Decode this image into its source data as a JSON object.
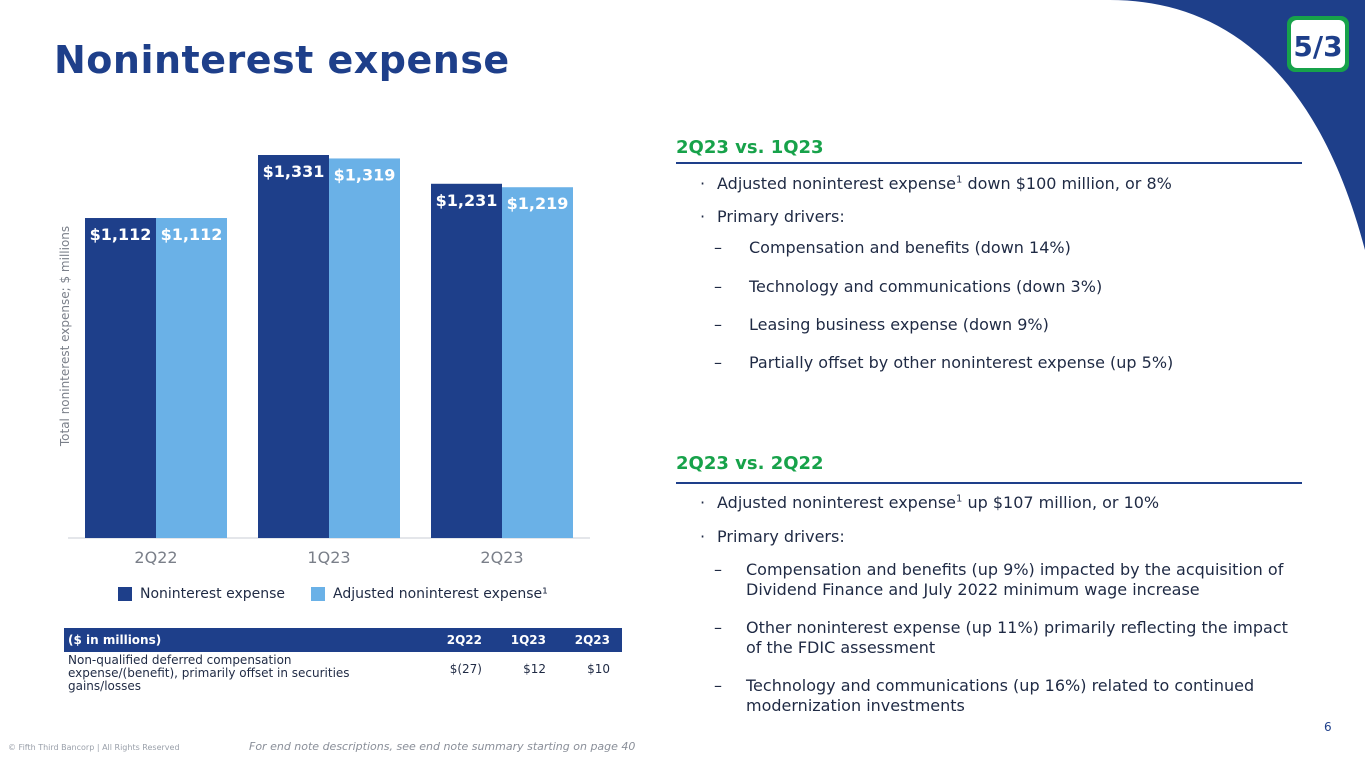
{
  "page": {
    "title": "Noninterest expense",
    "page_number": "6",
    "copyright": "© Fifth Third Bancorp | All Rights Reserved",
    "endnote": "For end note descriptions, see end note summary starting on page 40",
    "logo_text": "5/3"
  },
  "colors": {
    "brand_blue": "#1e3f8a",
    "light_blue": "#6ab1e7",
    "green": "#17a24a"
  },
  "chart_data": {
    "type": "bar",
    "title": "",
    "xlabel": "",
    "ylabel": "Total noninterest expense; $ millions",
    "categories": [
      "2Q22",
      "1Q23",
      "2Q23"
    ],
    "series": [
      {
        "name": "Noninterest expense",
        "values": [
          1112,
          1331,
          1231
        ],
        "labels": [
          "$1,112",
          "$1,331",
          "$1,231"
        ],
        "color": "#1e3f8a"
      },
      {
        "name": "Adjusted noninterest expense¹",
        "values": [
          1112,
          1319,
          1219
        ],
        "labels": [
          "$1,112",
          "$1,319",
          "$1,219"
        ],
        "color": "#6ab1e7"
      }
    ],
    "ylim": [
      0,
      1331
    ],
    "grid": false,
    "legend": "bottom"
  },
  "table": {
    "headers": [
      "($ in millions)",
      "2Q22",
      "1Q23",
      "2Q23"
    ],
    "rows": [
      {
        "label": "Non-qualified deferred compensation expense/(benefit), primarily offset in securities gains/losses",
        "values": [
          "$(27)",
          "$12",
          "$10"
        ]
      }
    ]
  },
  "sections": [
    {
      "heading": "2Q23 vs. 1Q23",
      "bullets": [
        {
          "text": "Adjusted noninterest expense",
          "sup": "1",
          "rest": " down $100 million, or 8%"
        },
        {
          "text": "Primary drivers:",
          "sup": "",
          "rest": ""
        }
      ],
      "subs": [
        "Compensation and benefits (down 14%)",
        "Technology and communications (down 3%)",
        "Leasing business expense (down 9%)",
        "Partially offset by other noninterest expense (up 5%)"
      ]
    },
    {
      "heading": "2Q23 vs. 2Q22",
      "bullets": [
        {
          "text": "Adjusted noninterest expense",
          "sup": "1",
          "rest": " up $107 million, or 10%"
        },
        {
          "text": "Primary drivers:",
          "sup": "",
          "rest": ""
        }
      ],
      "subs": [
        [
          "Compensation and benefits (up 9%) impacted by the acquisition of",
          "Dividend Finance and July 2022 minimum wage increase"
        ],
        [
          "Other noninterest expense (up 11%) primarily reflecting the impact",
          "of the FDIC assessment"
        ],
        [
          "Technology and communications (up 16%) related to continued",
          "modernization investments"
        ]
      ]
    }
  ]
}
